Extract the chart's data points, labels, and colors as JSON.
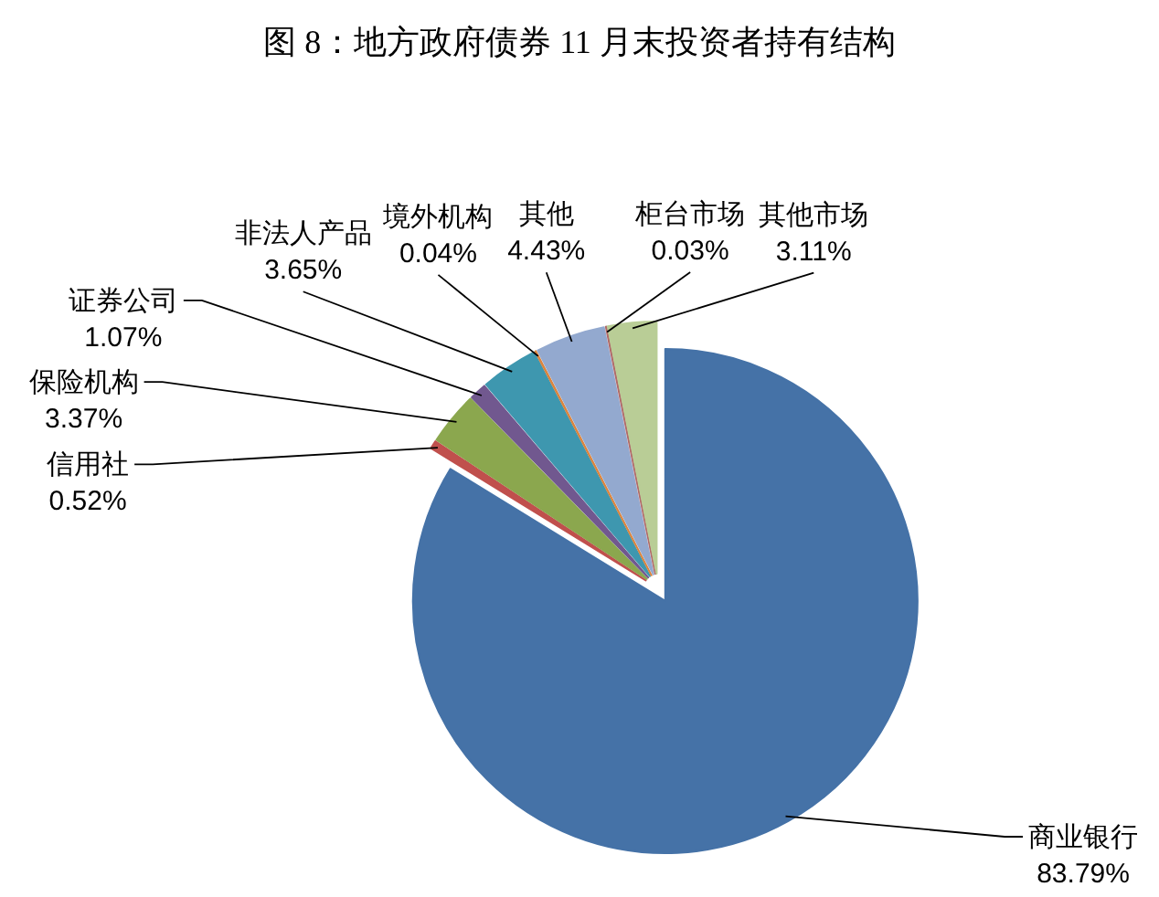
{
  "chart_data": {
    "type": "pie",
    "title": "图 8：地方政府债券 11 月末投资者持有结构",
    "categories": [
      "商业银行",
      "信用社",
      "保险机构",
      "证券公司",
      "非法人产品",
      "境外机构",
      "其他",
      "柜台市场",
      "其他市场"
    ],
    "values": [
      83.79,
      0.52,
      3.37,
      1.07,
      3.65,
      0.04,
      4.43,
      0.03,
      3.11
    ],
    "value_labels": [
      "83.79%",
      "0.52%",
      "3.37%",
      "1.07%",
      "3.65%",
      "0.04%",
      "4.43%",
      "0.03%",
      "3.11%"
    ],
    "colors": [
      "#4572A7",
      "#C0504D",
      "#8BA74E",
      "#71588F",
      "#3E97AF",
      "#DB843D",
      "#93A9CF",
      "#B06A6A",
      "#B9CD96"
    ]
  }
}
